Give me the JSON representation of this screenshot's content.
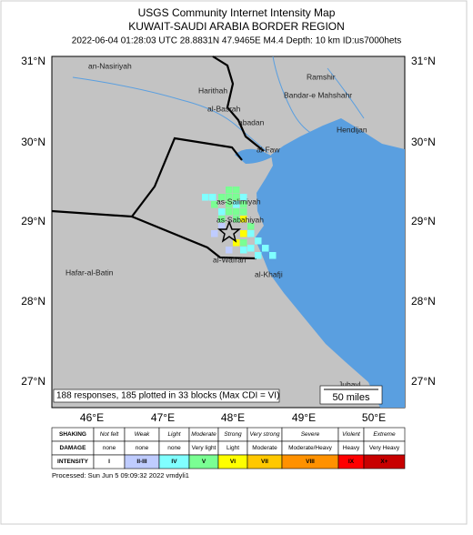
{
  "header": {
    "title": "USGS Community Internet Intensity Map",
    "region": "KUWAIT-SAUDI ARABIA BORDER REGION",
    "details": "2022-06-04 01:28:03 UTC 28.8831N 47.9465E M4.4 Depth: 10 km ID:us7000hets"
  },
  "map": {
    "lat_labels": [
      "31°N",
      "30°N",
      "29°N",
      "28°N",
      "27°N"
    ],
    "lon_labels": [
      "46°E",
      "47°E",
      "48°E",
      "49°E",
      "50°E"
    ],
    "places": [
      "an-Nasiriyah",
      "Ramshir",
      "Harithah",
      "Bandar-e Mahshahr",
      "al-Basrah",
      "abadan",
      "Hendijan",
      "al-Faw",
      "as-Salimiyah",
      "as-Sabahiyah",
      "al-Wafrah",
      "al-Khafji",
      "Hafar-al-Batin",
      "Jubayl"
    ],
    "note": "188 responses, 185 plotted in 33 blocks (Max CDI = VI)",
    "scale": "50 miles"
  },
  "legend": {
    "row_labels": [
      "SHAKING",
      "DAMAGE",
      "INTENSITY"
    ],
    "shaking": [
      "Not felt",
      "Weak",
      "Light",
      "Moderate",
      "Strong",
      "Very strong",
      "Severe",
      "Violent",
      "Extreme"
    ],
    "damage": [
      "none",
      "none",
      "none",
      "Very light",
      "Light",
      "Moderate",
      "Moderate/Heavy",
      "Heavy",
      "Very Heavy"
    ],
    "intensity": [
      "I",
      "II-III",
      "IV",
      "V",
      "VI",
      "VII",
      "VIII",
      "IX",
      "X+"
    ],
    "colors": [
      "#ffffff",
      "#bfccff",
      "#80ffff",
      "#7aff93",
      "#ffff00",
      "#ffc800",
      "#ff9100",
      "#ff0000",
      "#c80000"
    ]
  },
  "footer": "Processed: Sun Jun  5 09:09:32 2022 vmdyli1"
}
